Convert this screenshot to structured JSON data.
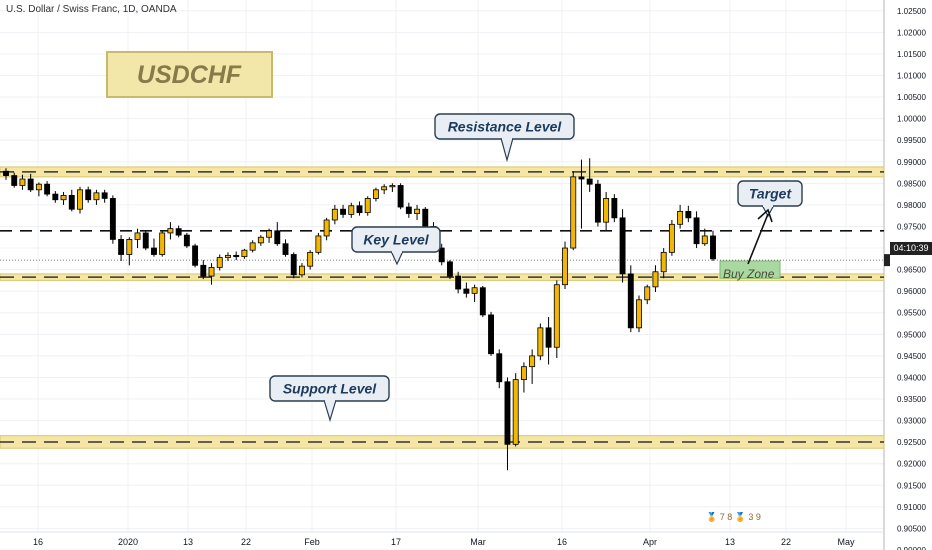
{
  "header": {
    "title": "U.S. Dollar / Swiss Franc, 1D, OANDA"
  },
  "badges": {
    "symbol": "USDCHF",
    "current_price_time": "04:10:39",
    "logo_text": "🏅 7  8  🏅 3  9"
  },
  "colors": {
    "bull": "#f2b705",
    "bear": "#000000",
    "zone_fill": "#f5e6a6",
    "zone_border": "#d9c56a",
    "buy_zone_fill": "#a9d8a0",
    "grid": "#eef1f5",
    "callout_fill": "#e9eef5",
    "callout_border": "#2c3e50",
    "callout_text": "#1b3a5c",
    "symbol_fill": "#f2e6a8",
    "symbol_text": "#8a7a4a"
  },
  "annotations": {
    "resistance": "Resistance Level",
    "key": "Key Level",
    "support": "Support Level",
    "target": "Target",
    "buy_zone": "Buy Zone"
  },
  "chart_data": {
    "type": "candlestick",
    "title": "U.S. Dollar / Swiss Franc, 1D, OANDA",
    "ylim": [
      0.9,
      1.0275
    ],
    "y_ticks": [
      "1.02500",
      "1.02000",
      "1.01500",
      "1.01000",
      "1.00500",
      "1.00000",
      "0.99500",
      "0.99000",
      "0.98500",
      "0.98000",
      "0.97500",
      "0.97000",
      "0.96500",
      "0.96000",
      "0.95500",
      "0.95000",
      "0.94500",
      "0.94000",
      "0.93500",
      "0.93000",
      "0.92500",
      "0.92000",
      "0.91500",
      "0.91000",
      "0.90500",
      "0.90000"
    ],
    "x_ticks": [
      "16",
      "2020",
      "13",
      "22",
      "Feb",
      "17",
      "Mar",
      "16",
      "Apr",
      "13",
      "22",
      "May"
    ],
    "levels": {
      "resistance": [
        0.9865,
        0.9888
      ],
      "key": [
        0.9625,
        0.964
      ],
      "support": [
        0.9236,
        0.9265
      ],
      "target_line": 0.974,
      "current_price_line": 0.9672
    },
    "buy_zone": [
      0.963,
      0.967
    ],
    "candles": [
      [
        0.9878,
        0.9885,
        0.9858,
        0.9868
      ],
      [
        0.9868,
        0.9875,
        0.984,
        0.9845
      ],
      [
        0.9845,
        0.987,
        0.9835,
        0.986
      ],
      [
        0.986,
        0.9872,
        0.983,
        0.9835
      ],
      [
        0.9835,
        0.9852,
        0.982,
        0.9848
      ],
      [
        0.9848,
        0.9855,
        0.982,
        0.9825
      ],
      [
        0.9825,
        0.9832,
        0.9805,
        0.9812
      ],
      [
        0.9812,
        0.983,
        0.98,
        0.9822
      ],
      [
        0.9822,
        0.9835,
        0.9785,
        0.979
      ],
      [
        0.979,
        0.9842,
        0.978,
        0.9835
      ],
      [
        0.9835,
        0.9842,
        0.9805,
        0.9812
      ],
      [
        0.9812,
        0.9835,
        0.98,
        0.9828
      ],
      [
        0.9828,
        0.9835,
        0.9805,
        0.9815
      ],
      [
        0.9815,
        0.9822,
        0.971,
        0.972
      ],
      [
        0.972,
        0.973,
        0.967,
        0.9685
      ],
      [
        0.9685,
        0.9725,
        0.966,
        0.972
      ],
      [
        0.972,
        0.9745,
        0.97,
        0.9735
      ],
      [
        0.9735,
        0.974,
        0.9695,
        0.97
      ],
      [
        0.97,
        0.9722,
        0.968,
        0.9685
      ],
      [
        0.9685,
        0.974,
        0.968,
        0.9735
      ],
      [
        0.9735,
        0.976,
        0.972,
        0.9745
      ],
      [
        0.9745,
        0.9752,
        0.9725,
        0.973
      ],
      [
        0.973,
        0.9735,
        0.97,
        0.9705
      ],
      [
        0.9705,
        0.971,
        0.9655,
        0.966
      ],
      [
        0.966,
        0.9672,
        0.9628,
        0.9635
      ],
      [
        0.9635,
        0.9665,
        0.9615,
        0.9655
      ],
      [
        0.9655,
        0.9685,
        0.9648,
        0.9678
      ],
      [
        0.9678,
        0.969,
        0.967,
        0.9683
      ],
      [
        0.9683,
        0.9692,
        0.9672,
        0.968
      ],
      [
        0.968,
        0.9698,
        0.9675,
        0.9695
      ],
      [
        0.9695,
        0.9718,
        0.969,
        0.9712
      ],
      [
        0.9712,
        0.973,
        0.9705,
        0.9725
      ],
      [
        0.9725,
        0.9745,
        0.9712,
        0.974
      ],
      [
        0.974,
        0.976,
        0.9705,
        0.971
      ],
      [
        0.971,
        0.972,
        0.968,
        0.9685
      ],
      [
        0.9685,
        0.969,
        0.963,
        0.9638
      ],
      [
        0.9638,
        0.9665,
        0.9632,
        0.9658
      ],
      [
        0.9658,
        0.9695,
        0.965,
        0.969
      ],
      [
        0.969,
        0.9735,
        0.9685,
        0.9728
      ],
      [
        0.9728,
        0.977,
        0.9718,
        0.9765
      ],
      [
        0.9765,
        0.98,
        0.9755,
        0.979
      ],
      [
        0.979,
        0.98,
        0.977,
        0.9778
      ],
      [
        0.9778,
        0.9805,
        0.977,
        0.9798
      ],
      [
        0.9798,
        0.9808,
        0.9775,
        0.9782
      ],
      [
        0.9782,
        0.982,
        0.9775,
        0.9815
      ],
      [
        0.9815,
        0.984,
        0.9808,
        0.9835
      ],
      [
        0.9835,
        0.9848,
        0.9825,
        0.9842
      ],
      [
        0.9842,
        0.985,
        0.983,
        0.9845
      ],
      [
        0.9845,
        0.985,
        0.979,
        0.9795
      ],
      [
        0.9795,
        0.9805,
        0.977,
        0.978
      ],
      [
        0.978,
        0.98,
        0.9765,
        0.979
      ],
      [
        0.979,
        0.9795,
        0.974,
        0.975
      ],
      [
        0.975,
        0.976,
        0.969,
        0.97
      ],
      [
        0.97,
        0.971,
        0.966,
        0.9668
      ],
      [
        0.9668,
        0.9672,
        0.9628,
        0.9635
      ],
      [
        0.9635,
        0.9645,
        0.9595,
        0.9605
      ],
      [
        0.9605,
        0.962,
        0.9585,
        0.9595
      ],
      [
        0.9595,
        0.9615,
        0.9575,
        0.9608
      ],
      [
        0.9608,
        0.9612,
        0.954,
        0.9545
      ],
      [
        0.9545,
        0.9552,
        0.945,
        0.9455
      ],
      [
        0.9455,
        0.9465,
        0.9375,
        0.939
      ],
      [
        0.939,
        0.94,
        0.9185,
        0.9245
      ],
      [
        0.9245,
        0.941,
        0.924,
        0.9395
      ],
      [
        0.9395,
        0.9435,
        0.9365,
        0.9425
      ],
      [
        0.9425,
        0.9465,
        0.9385,
        0.945
      ],
      [
        0.945,
        0.9525,
        0.944,
        0.9515
      ],
      [
        0.9515,
        0.954,
        0.943,
        0.947
      ],
      [
        0.947,
        0.9625,
        0.9445,
        0.9615
      ],
      [
        0.9615,
        0.9715,
        0.9605,
        0.97
      ],
      [
        0.97,
        0.9878,
        0.9695,
        0.9865
      ],
      [
        0.9865,
        0.9905,
        0.9745,
        0.986
      ],
      [
        0.986,
        0.9908,
        0.983,
        0.9848
      ],
      [
        0.9848,
        0.9858,
        0.975,
        0.976
      ],
      [
        0.976,
        0.983,
        0.974,
        0.9815
      ],
      [
        0.9815,
        0.9825,
        0.976,
        0.977
      ],
      [
        0.977,
        0.979,
        0.962,
        0.964
      ],
      [
        0.964,
        0.966,
        0.9505,
        0.9515
      ],
      [
        0.9515,
        0.959,
        0.9505,
        0.958
      ],
      [
        0.958,
        0.9615,
        0.957,
        0.961
      ],
      [
        0.961,
        0.966,
        0.9598,
        0.9645
      ],
      [
        0.9645,
        0.97,
        0.963,
        0.969
      ],
      [
        0.969,
        0.9765,
        0.9682,
        0.9755
      ],
      [
        0.9755,
        0.98,
        0.9745,
        0.9785
      ],
      [
        0.9785,
        0.9798,
        0.976,
        0.977
      ],
      [
        0.977,
        0.9785,
        0.97,
        0.971
      ],
      [
        0.971,
        0.9745,
        0.9705,
        0.9728
      ],
      [
        0.9728,
        0.974,
        0.967,
        0.9675
      ]
    ]
  }
}
